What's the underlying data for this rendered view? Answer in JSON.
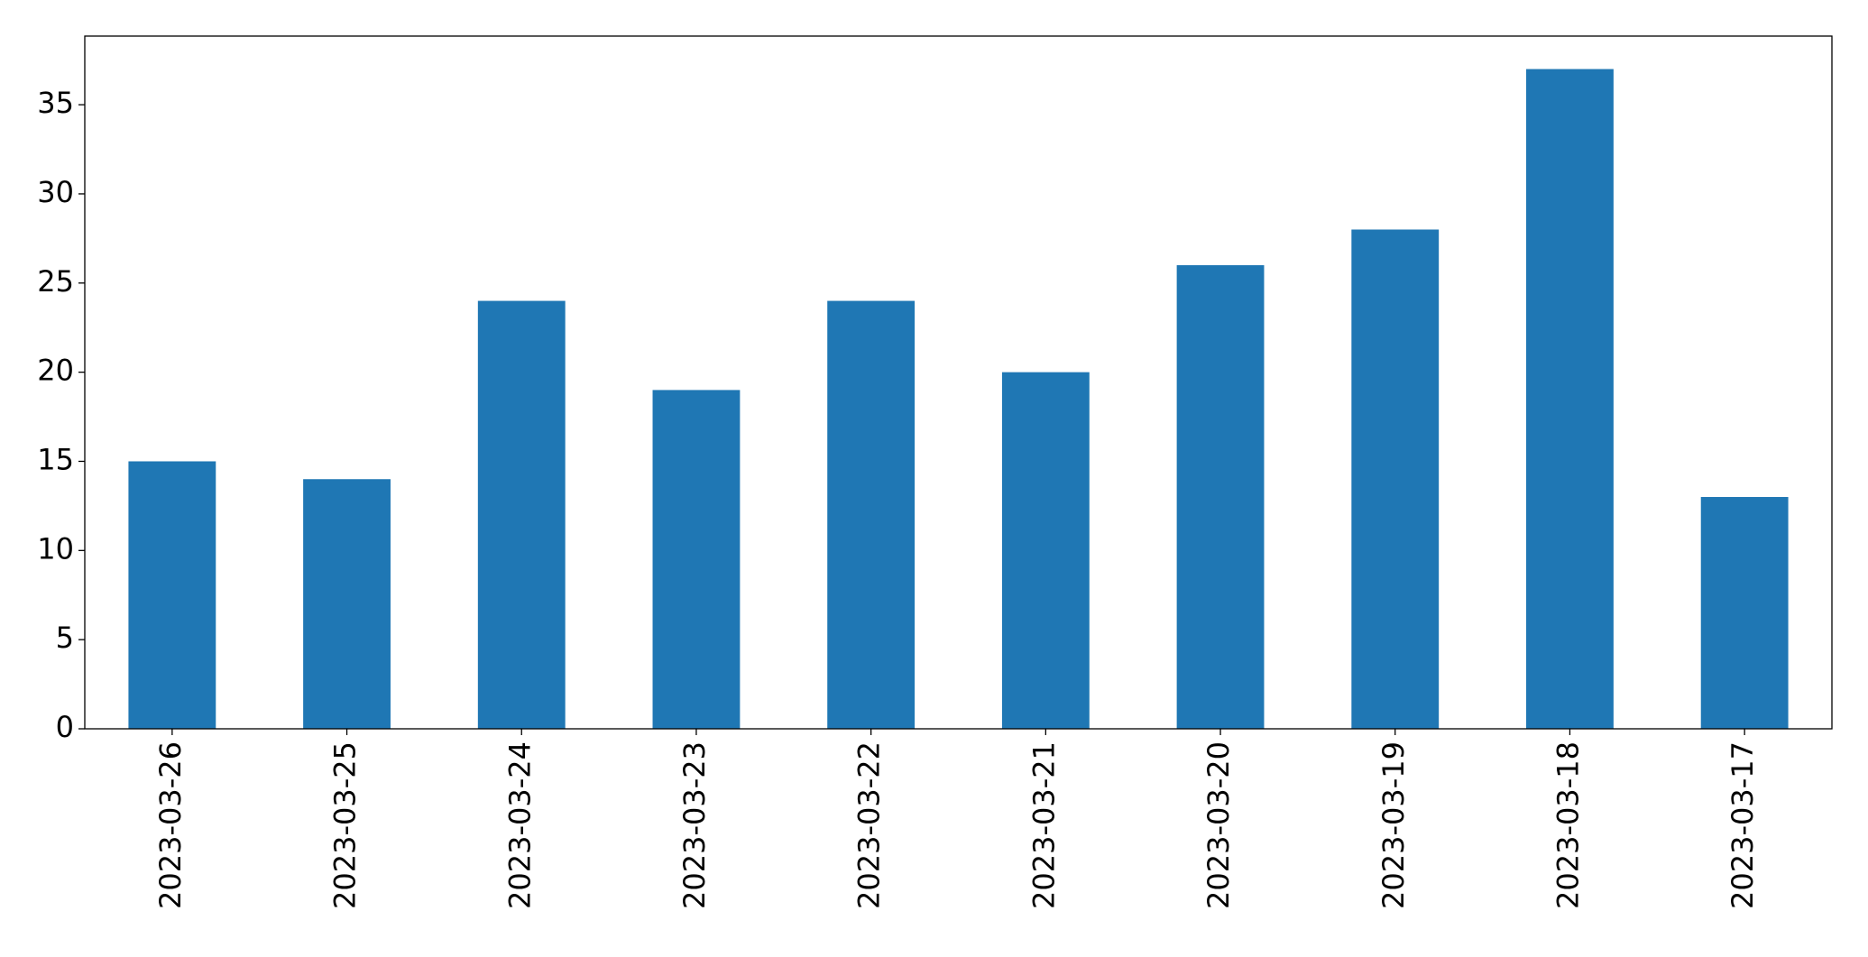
{
  "chart_data": {
    "type": "bar",
    "categories": [
      "2023-03-26",
      "2023-03-25",
      "2023-03-24",
      "2023-03-23",
      "2023-03-22",
      "2023-03-21",
      "2023-03-20",
      "2023-03-19",
      "2023-03-18",
      "2023-03-17"
    ],
    "values": [
      15,
      14,
      24,
      19,
      24,
      20,
      26,
      28,
      37,
      13
    ],
    "color": "#1f77b4",
    "ylim": [
      0,
      38.85
    ],
    "yticks": [
      0,
      5,
      10,
      15,
      20,
      25,
      30,
      35
    ],
    "grid": false
  }
}
